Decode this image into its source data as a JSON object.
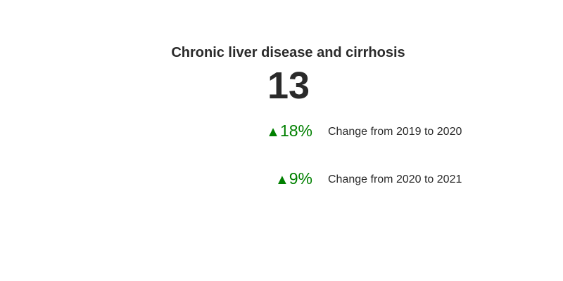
{
  "chart_data": {
    "type": "indicator",
    "title": "Chronic liver disease and cirrhosis",
    "value": "13",
    "deltas": [
      {
        "direction": "up",
        "arrow": "▲",
        "value": "18%",
        "label": "Change from 2019 to 2020"
      },
      {
        "direction": "up",
        "arrow": "▲",
        "value": "9%",
        "label": "Change from 2020 to 2021"
      }
    ],
    "colors": {
      "increasing": "#008000",
      "text": "#2a2a2a",
      "background": "#ffffff"
    }
  }
}
